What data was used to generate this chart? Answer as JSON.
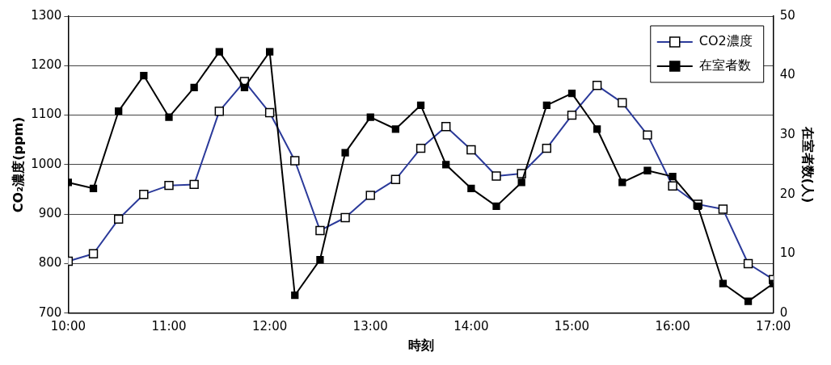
{
  "chart_data": {
    "type": "line",
    "xlabel": "時刻",
    "ylabel": "CO₂濃度(ppm)",
    "y2label": "在室者数(人)",
    "x": [
      10,
      10.25,
      10.5,
      10.75,
      11,
      11.25,
      11.5,
      11.75,
      12,
      12.25,
      12.5,
      12.75,
      13,
      13.25,
      13.5,
      13.75,
      14,
      14.25,
      14.5,
      14.75,
      15,
      15.25,
      15.5,
      15.75,
      16,
      16.25,
      16.5,
      16.75,
      17
    ],
    "series": [
      {
        "name": "CO2濃度",
        "color": "#2b3a9a",
        "marker": "square",
        "values": [
          805,
          820,
          890,
          940,
          958,
          960,
          1108,
          1168,
          1105,
          1008,
          867,
          893,
          938,
          970,
          1033,
          1077,
          1030,
          977,
          982,
          1033,
          1100,
          1160,
          1125,
          1060,
          957,
          920,
          910,
          800,
          768
        ]
      },
      {
        "name": "在室者数",
        "color": "#000000",
        "marker": "square",
        "axis": "y2",
        "values": [
          22,
          21,
          34,
          40,
          33,
          38,
          44,
          38,
          44,
          3,
          9,
          27,
          33,
          31,
          35,
          25,
          21,
          18,
          22,
          35,
          37,
          31,
          22,
          24,
          23,
          18,
          5,
          2,
          5
        ]
      }
    ],
    "xlim": [
      10,
      17
    ],
    "xticks": [
      {
        "value": 10,
        "label": "10:00"
      },
      {
        "value": 11,
        "label": "11:00"
      },
      {
        "value": 12,
        "label": "12:00"
      },
      {
        "value": 13,
        "label": "13:00"
      },
      {
        "value": 14,
        "label": "14:00"
      },
      {
        "value": 15,
        "label": "15:00"
      },
      {
        "value": 16,
        "label": "16:00"
      },
      {
        "value": 17,
        "label": "17:00"
      }
    ],
    "ylim": [
      700,
      1300
    ],
    "yticks": [
      700,
      800,
      900,
      1000,
      1100,
      1200,
      1300
    ],
    "y2lim": [
      0,
      50
    ],
    "y2ticks": [
      0,
      10,
      20,
      30,
      40,
      50
    ],
    "grid": "y",
    "legend": "top right"
  }
}
